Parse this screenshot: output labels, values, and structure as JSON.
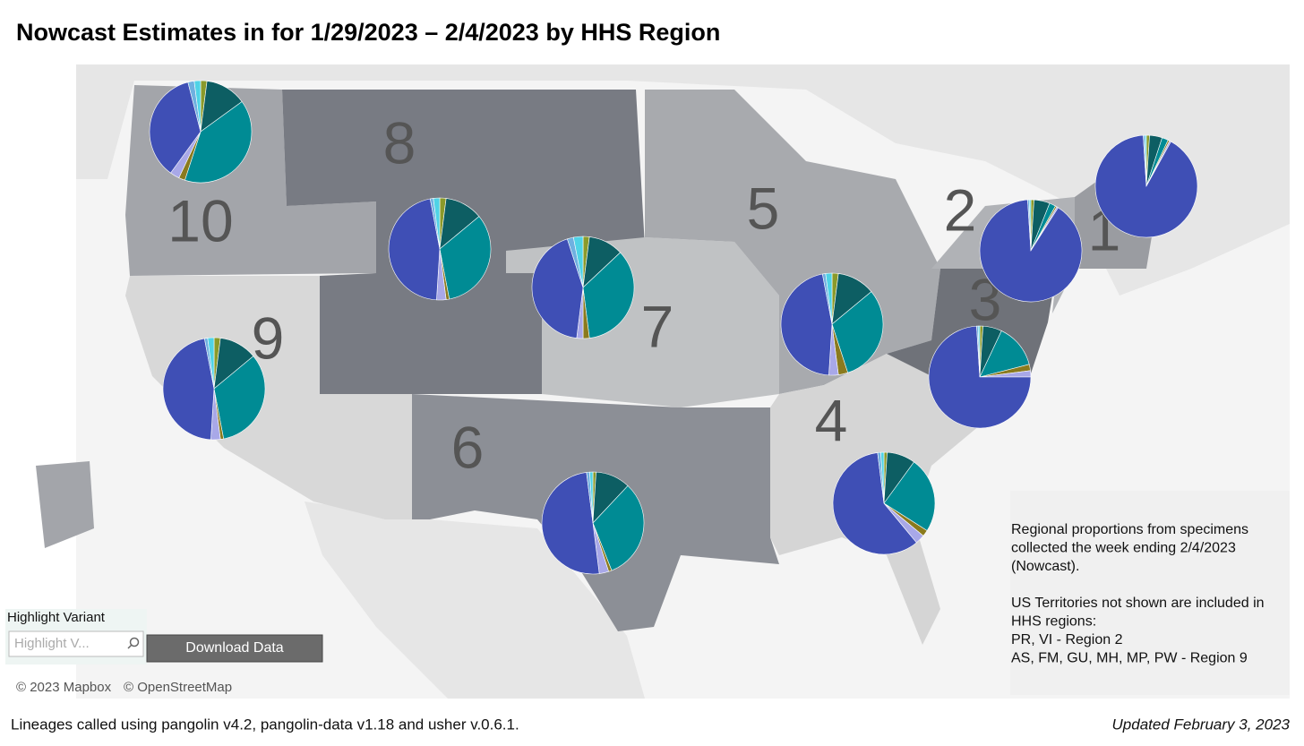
{
  "header": {
    "title": "Nowcast Estimates in for 1/29/2023 – 2/4/2023 by HHS Region"
  },
  "map": {
    "colors": [
      "#8a9a2a",
      "#0d5e63",
      "#008b94",
      "#8a7a1e",
      "#a8a8e8",
      "#3f4fb5",
      "#6fb0e0",
      "#4fd3e6"
    ],
    "regions": [
      {
        "label": "1",
        "values": [
          1,
          4,
          2,
          0.5,
          0.5,
          91,
          0.5,
          0.5
        ]
      },
      {
        "label": "2",
        "values": [
          1,
          5,
          2,
          0.5,
          0.5,
          90,
          0.5,
          0.5
        ]
      },
      {
        "label": "3",
        "values": [
          1,
          6,
          14,
          2,
          2,
          74,
          0.5,
          0.5
        ]
      },
      {
        "label": "4",
        "values": [
          1,
          9,
          24,
          2,
          3,
          59,
          1,
          1
        ]
      },
      {
        "label": "5",
        "values": [
          2,
          12,
          31,
          3,
          3,
          46,
          1,
          2
        ]
      },
      {
        "label": "6",
        "values": [
          1,
          11,
          32,
          1,
          3,
          50,
          1,
          1
        ]
      },
      {
        "label": "7",
        "values": [
          2,
          11,
          35,
          2,
          2,
          43,
          2,
          3
        ]
      },
      {
        "label": "8",
        "values": [
          2,
          12,
          33,
          1,
          3,
          46,
          1,
          2
        ]
      },
      {
        "label": "9",
        "values": [
          2,
          12,
          33,
          1,
          3,
          46,
          1,
          2
        ]
      },
      {
        "label": "10",
        "values": [
          2,
          13,
          40,
          2,
          3,
          36,
          2,
          2
        ]
      }
    ],
    "attribution": [
      "© 2023 Mapbox",
      "© OpenStreetMap"
    ]
  },
  "controls": {
    "highlight_label": "Highlight Variant",
    "highlight_placeholder": "Highlight V...",
    "download_button": "Download Data"
  },
  "notes": [
    "Regional proportions from specimens",
    "collected the week ending 2/4/2023",
    "(Nowcast).",
    "US Territories not shown are included in",
    "HHS regions:",
    "PR, VI - Region 2",
    "AS, FM, GU, MH, MP, PW - Region 9"
  ],
  "footer": {
    "left": "Lineages called using pangolin v4.2, pangolin-data v1.18 and usher v.0.6.1.",
    "right": "Updated February 3, 2023"
  }
}
